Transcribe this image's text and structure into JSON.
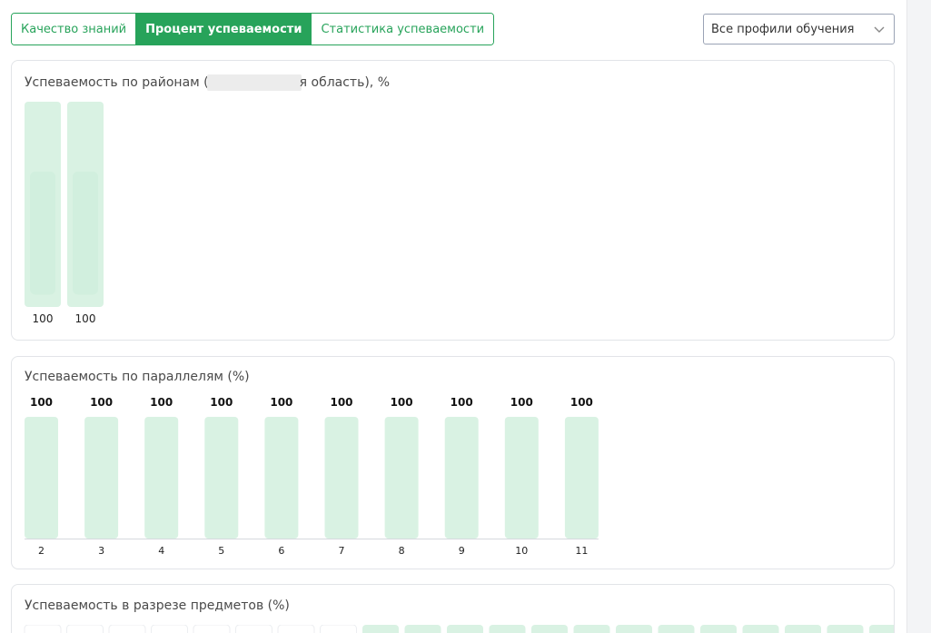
{
  "tabs": [
    {
      "label": "Качество знаний",
      "active": false
    },
    {
      "label": "Процент успеваемости",
      "active": true
    },
    {
      "label": "Статистика успеваемости",
      "active": false
    }
  ],
  "profile_select": {
    "value": "Все профили обучения",
    "icon": "chevron-down-icon"
  },
  "colors": {
    "accent": "#27a35a",
    "bar_fill": "#d9f2e3",
    "bar_fill_dark": "#cfeedd"
  },
  "districts_card": {
    "title_prefix": "Успеваемость по районам (",
    "title_suffix": "я область), %"
  },
  "parallels_card": {
    "title": "Успеваемость по параллелям (%)"
  },
  "subjects_card": {
    "title": "Успеваемость в разрезе предметов (%)"
  },
  "chart_data": [
    {
      "type": "bar",
      "categories": [
        "",
        ""
      ],
      "values": [
        100,
        100
      ],
      "title": "",
      "ylim": [
        0,
        100
      ]
    },
    {
      "type": "bar",
      "categories": [
        "2",
        "3",
        "4",
        "5",
        "6",
        "7",
        "8",
        "9",
        "10",
        "11"
      ],
      "values": [
        100,
        100,
        100,
        100,
        100,
        100,
        100,
        100,
        100,
        100
      ],
      "title": "",
      "ylim": [
        0,
        100
      ]
    }
  ]
}
